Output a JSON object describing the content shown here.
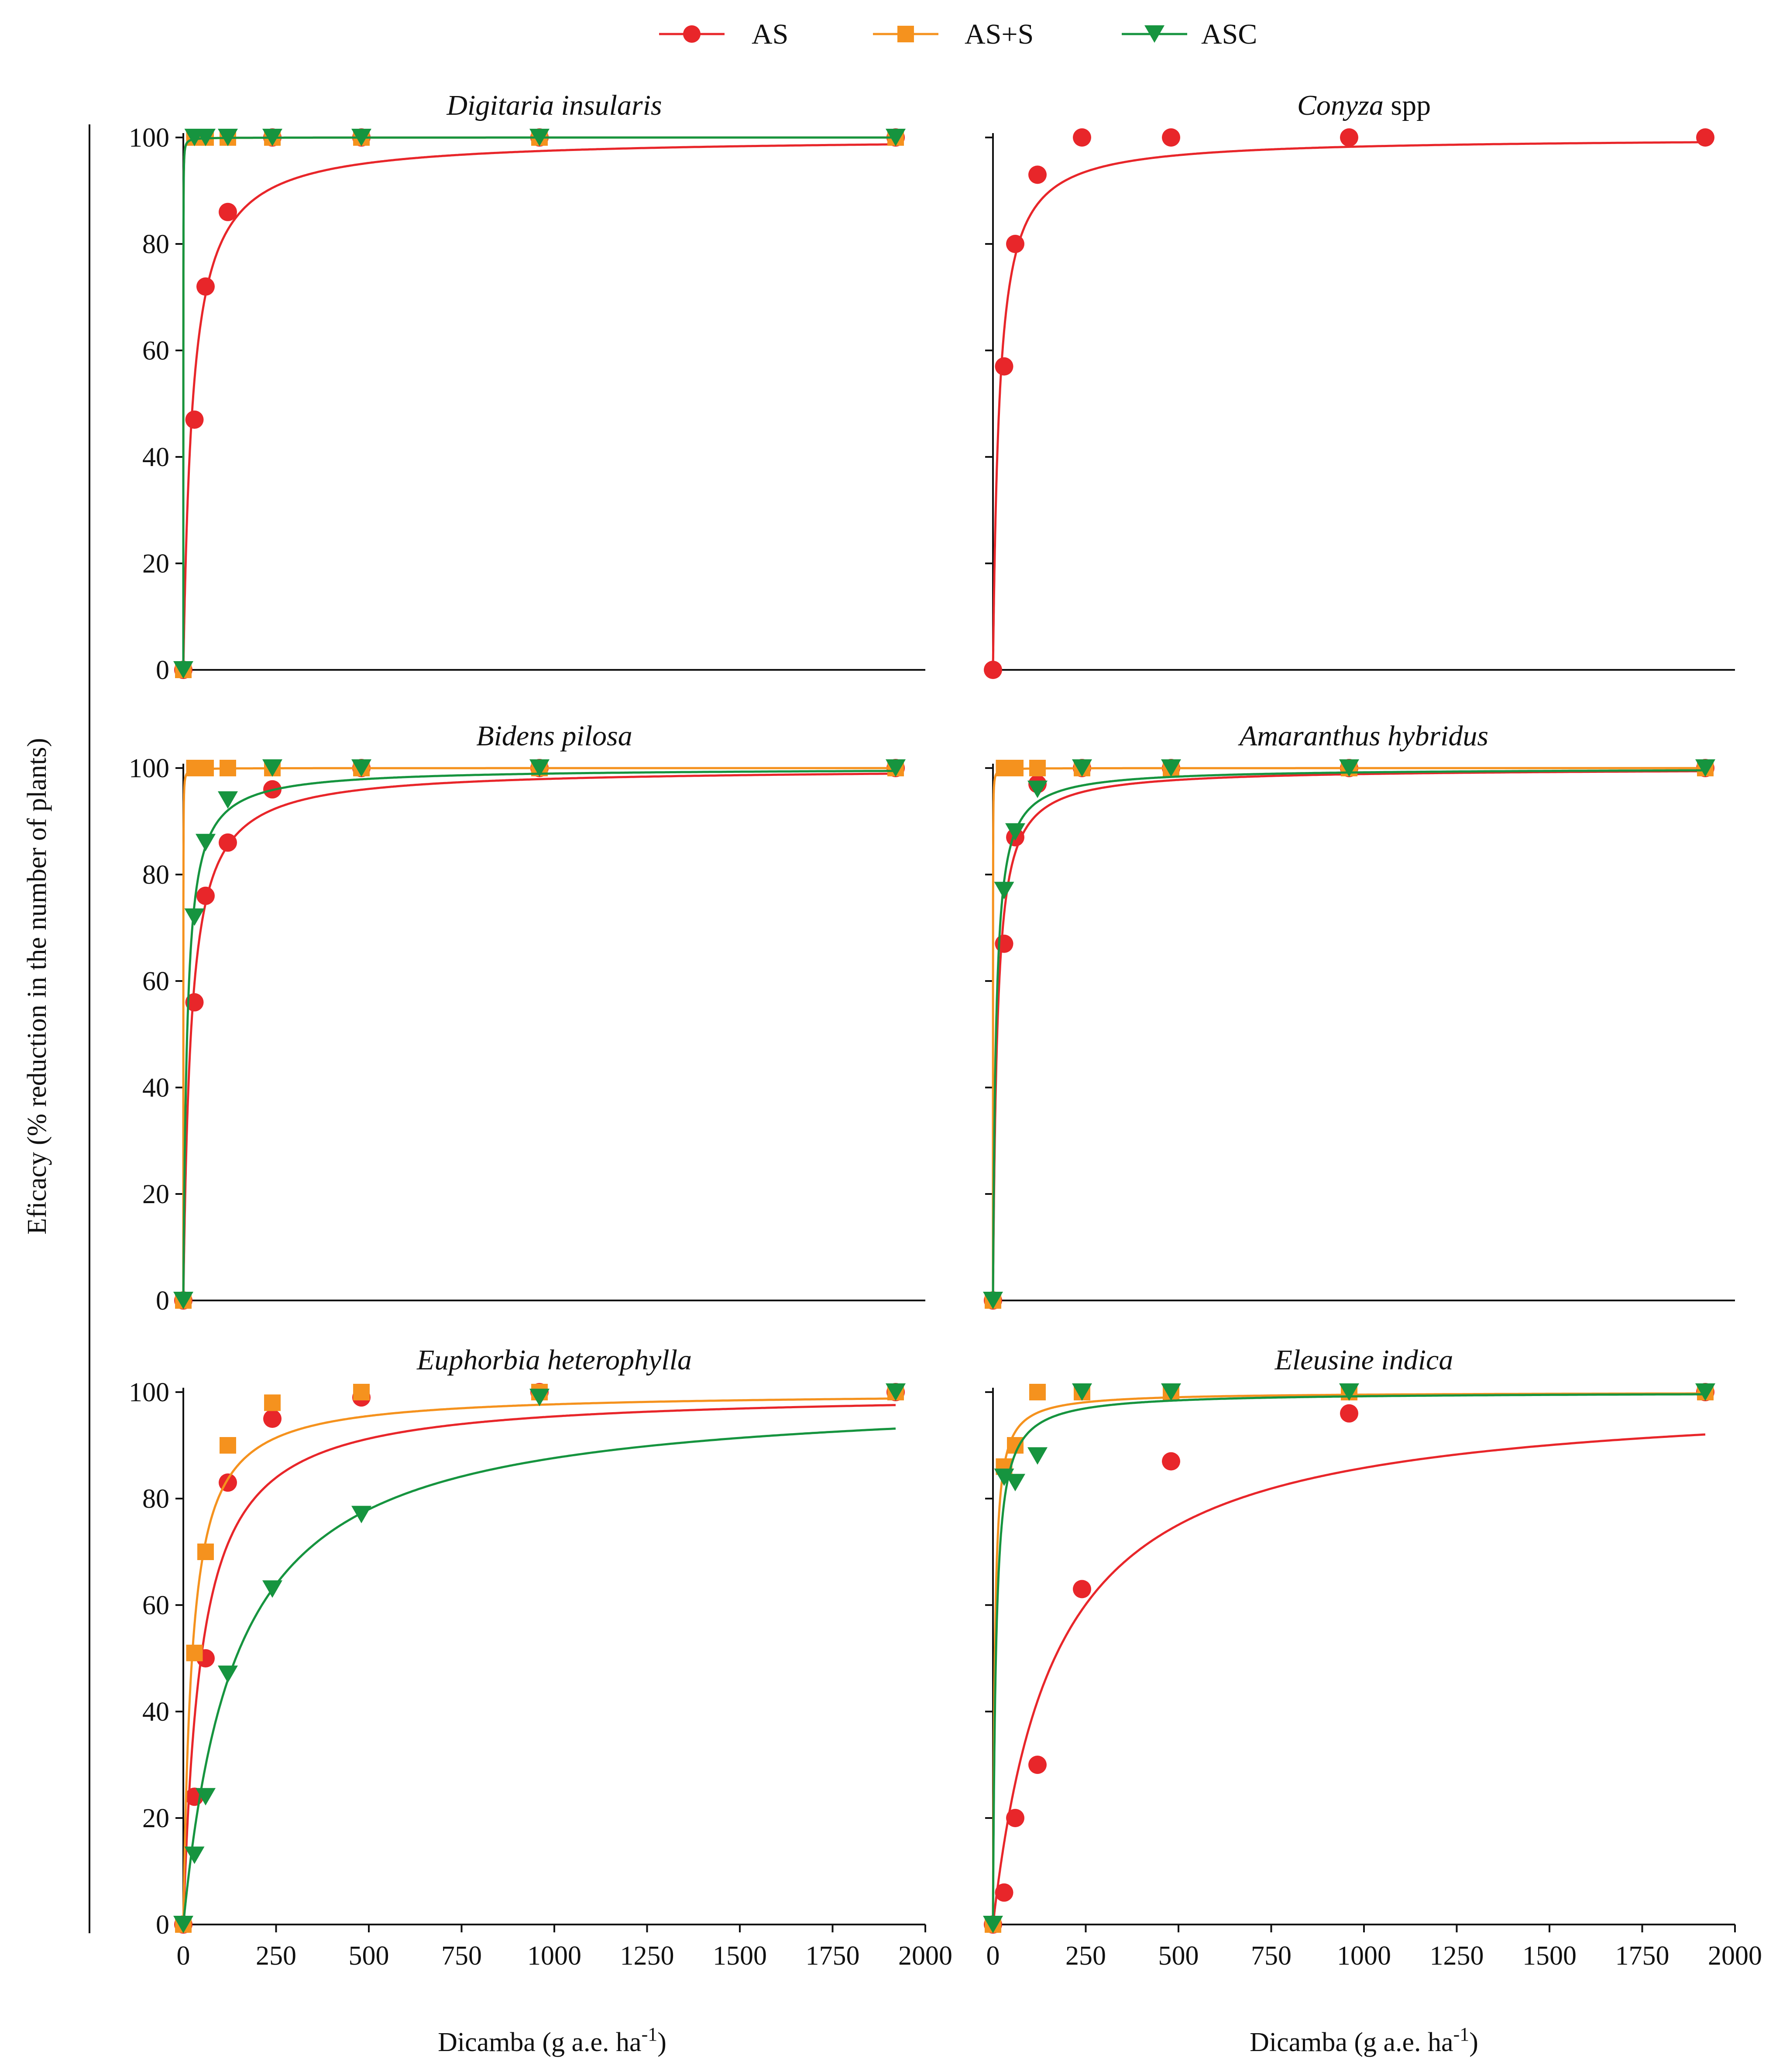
{
  "colors": {
    "AS": "#e8262a",
    "AS+S": "#f5921e",
    "ASC": "#16943f"
  },
  "legend": [
    {
      "key": "AS",
      "label": "AS",
      "marker": "circle"
    },
    {
      "key": "AS+S",
      "label": "AS+S",
      "marker": "square"
    },
    {
      "key": "ASC",
      "label": "ASC",
      "marker": "triangle-down"
    }
  ],
  "figure": {
    "ylabel": "Eficacy (% reduction in the number of plants)",
    "xlabel_text": "Dicamba (g a.e. ha",
    "xlabel_sup": "-1",
    "xlabel_close": ")"
  },
  "chart_data": [
    {
      "type": "scatter",
      "title": "Digitaria insularis",
      "title_suffix": "",
      "xlim": [
        0,
        2000
      ],
      "ylim": [
        0,
        100
      ],
      "xticks": [],
      "yticks": [
        0,
        20,
        40,
        60,
        80,
        100
      ],
      "show_ytick_labels": true,
      "series": [
        {
          "name": "AS",
          "x": [
            0,
            30,
            60,
            120,
            240,
            480,
            960,
            1920
          ],
          "y": [
            0,
            47,
            72,
            86,
            100,
            100,
            100,
            100
          ]
        },
        {
          "name": "AS+S",
          "x": [
            0,
            30,
            60,
            120,
            240,
            480,
            960,
            1920
          ],
          "y": [
            0,
            100,
            100,
            100,
            100,
            100,
            100,
            100
          ]
        },
        {
          "name": "ASC",
          "x": [
            0,
            30,
            60,
            120,
            240,
            480,
            960,
            1920
          ],
          "y": [
            0,
            100,
            100,
            100,
            100,
            100,
            100,
            100
          ]
        }
      ]
    },
    {
      "type": "scatter",
      "title": "Conyza",
      "title_suffix": " spp",
      "xlim": [
        0,
        2000
      ],
      "ylim": [
        0,
        100
      ],
      "xticks": [],
      "yticks": [
        0,
        20,
        40,
        60,
        80,
        100
      ],
      "show_ytick_labels": false,
      "series": [
        {
          "name": "AS",
          "x": [
            0,
            30,
            60,
            120,
            240,
            480,
            960,
            1920
          ],
          "y": [
            0,
            57,
            80,
            93,
            100,
            100,
            100,
            100
          ]
        }
      ]
    },
    {
      "type": "scatter",
      "title": "Bidens pilosa",
      "title_suffix": "",
      "xlim": [
        0,
        2000
      ],
      "ylim": [
        0,
        100
      ],
      "xticks": [],
      "yticks": [
        0,
        20,
        40,
        60,
        80,
        100
      ],
      "show_ytick_labels": true,
      "series": [
        {
          "name": "AS",
          "x": [
            0,
            30,
            60,
            120,
            240,
            480,
            960,
            1920
          ],
          "y": [
            0,
            56,
            76,
            86,
            96,
            100,
            100,
            100
          ]
        },
        {
          "name": "AS+S",
          "x": [
            0,
            30,
            60,
            120,
            240,
            480,
            960,
            1920
          ],
          "y": [
            0,
            100,
            100,
            100,
            100,
            100,
            100,
            100
          ]
        },
        {
          "name": "ASC",
          "x": [
            0,
            30,
            60,
            120,
            240,
            480,
            960,
            1920
          ],
          "y": [
            0,
            72,
            86,
            94,
            100,
            100,
            100,
            100
          ]
        }
      ]
    },
    {
      "type": "scatter",
      "title": "Amaranthus hybridus",
      "title_suffix": "",
      "xlim": [
        0,
        2000
      ],
      "ylim": [
        0,
        100
      ],
      "xticks": [],
      "yticks": [
        0,
        20,
        40,
        60,
        80,
        100
      ],
      "show_ytick_labels": false,
      "series": [
        {
          "name": "AS",
          "x": [
            0,
            30,
            60,
            120,
            240,
            480,
            960,
            1920
          ],
          "y": [
            0,
            67,
            87,
            97,
            100,
            100,
            100,
            100
          ]
        },
        {
          "name": "AS+S",
          "x": [
            0,
            30,
            60,
            120,
            240,
            480,
            960,
            1920
          ],
          "y": [
            0,
            100,
            100,
            100,
            100,
            100,
            100,
            100
          ]
        },
        {
          "name": "ASC",
          "x": [
            0,
            30,
            60,
            120,
            240,
            480,
            960,
            1920
          ],
          "y": [
            0,
            77,
            88,
            96,
            100,
            100,
            100,
            100
          ]
        }
      ]
    },
    {
      "type": "scatter",
      "title": "Euphorbia heterophylla",
      "title_suffix": "",
      "xlim": [
        0,
        2000
      ],
      "ylim": [
        0,
        100
      ],
      "xticks": [
        0,
        250,
        500,
        750,
        1000,
        1250,
        1500,
        1750,
        2000
      ],
      "yticks": [
        0,
        20,
        40,
        60,
        80,
        100
      ],
      "show_ytick_labels": true,
      "series": [
        {
          "name": "AS",
          "x": [
            0,
            30,
            60,
            120,
            240,
            480,
            960,
            1920
          ],
          "y": [
            0,
            24,
            50,
            83,
            95,
            99,
            100,
            100
          ]
        },
        {
          "name": "AS+S",
          "x": [
            0,
            30,
            60,
            120,
            240,
            480,
            960,
            1920
          ],
          "y": [
            0,
            51,
            70,
            90,
            98,
            100,
            100,
            100
          ]
        },
        {
          "name": "ASC",
          "x": [
            0,
            30,
            60,
            120,
            240,
            480,
            960,
            1920
          ],
          "y": [
            0,
            13,
            24,
            47,
            63,
            77,
            99,
            100
          ]
        }
      ]
    },
    {
      "type": "scatter",
      "title": "Eleusine indica",
      "title_suffix": "",
      "xlim": [
        0,
        2000
      ],
      "ylim": [
        0,
        100
      ],
      "xticks": [
        0,
        250,
        500,
        750,
        1000,
        1250,
        1500,
        1750,
        2000
      ],
      "yticks": [
        0,
        20,
        40,
        60,
        80,
        100
      ],
      "show_ytick_labels": false,
      "series": [
        {
          "name": "AS",
          "x": [
            0,
            30,
            60,
            120,
            240,
            480,
            960,
            1920
          ],
          "y": [
            0,
            6,
            20,
            30,
            63,
            87,
            96,
            100
          ]
        },
        {
          "name": "AS+S",
          "x": [
            0,
            30,
            60,
            120,
            240,
            480,
            960,
            1920
          ],
          "y": [
            0,
            86,
            90,
            100,
            100,
            100,
            100,
            100
          ]
        },
        {
          "name": "ASC",
          "x": [
            0,
            30,
            60,
            120,
            240,
            480,
            960,
            1920
          ],
          "y": [
            0,
            84,
            83,
            88,
            100,
            100,
            100,
            100
          ]
        }
      ]
    }
  ]
}
